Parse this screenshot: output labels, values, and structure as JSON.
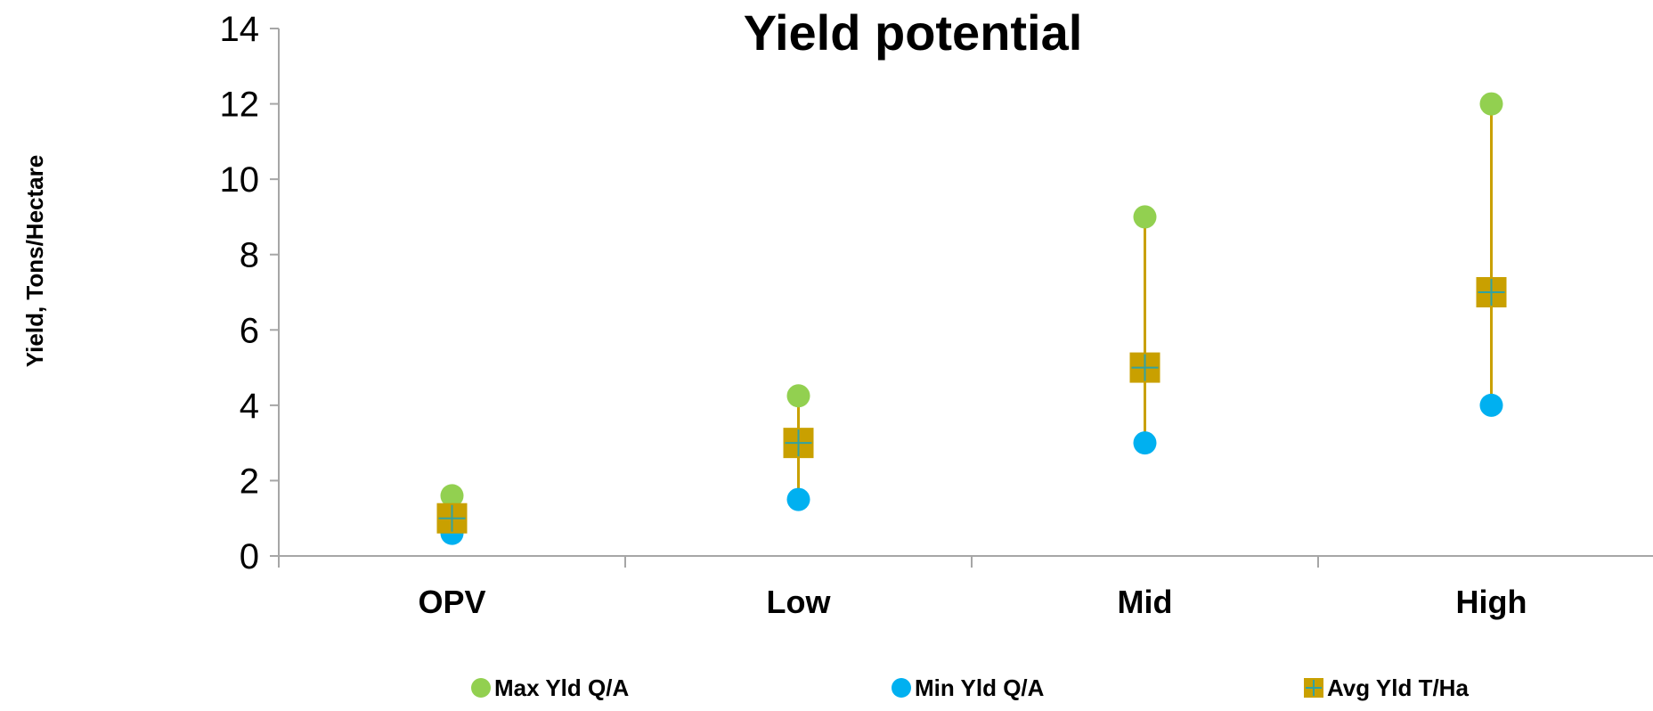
{
  "chart_data": {
    "type": "scatter",
    "title": "Yield potential",
    "ylabel": "Yield, Tons/Hectare",
    "xlabel": "",
    "categories": [
      "OPV",
      "Low",
      "Mid",
      "High"
    ],
    "ylim": [
      0,
      14
    ],
    "yticks": [
      "0",
      "2",
      "4",
      "6",
      "8",
      "10",
      "12",
      "14"
    ],
    "grid": false,
    "legend_position": "bottom",
    "series": [
      {
        "name": "Max Yld Q/A",
        "marker": "circle",
        "color": "#92d050",
        "values": [
          1.6,
          4.25,
          9,
          12
        ]
      },
      {
        "name": "Min Yld Q/A",
        "marker": "circle",
        "color": "#00b0f0",
        "values": [
          0.6,
          1.5,
          3,
          4
        ]
      },
      {
        "name": "Avg Yld T/Ha",
        "marker": "square",
        "color": "#c9a000",
        "cross_color": "#31a2a2",
        "values": [
          1,
          3,
          5,
          7
        ]
      }
    ],
    "range_line_color": "#c9a000",
    "axis_color": "#a6a6a6"
  }
}
